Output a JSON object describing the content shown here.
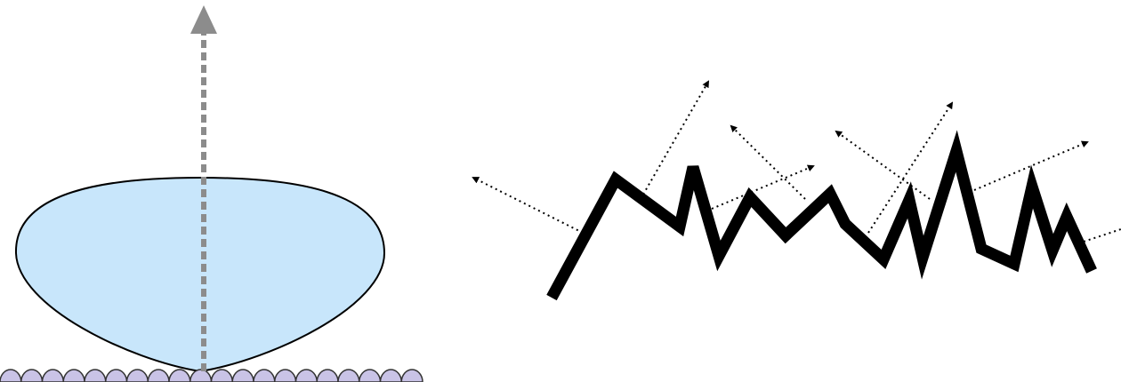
{
  "diagram": {
    "left_panel": {
      "subject": "lobe-over-bumpy-surface",
      "lobe_fill": "#c8e6fb",
      "lobe_stroke": "#000000",
      "surface_fill": "#c9c3e6",
      "surface_bump_count": 20,
      "vertical_arrow_color": "#8c8c8c",
      "vertical_arrow_style": "dashed"
    },
    "right_panel": {
      "subject": "rough-surface-scattering",
      "surface_stroke": "#000000",
      "scatter_arrow_color": "#000000",
      "scatter_arrow_style": "dotted",
      "scatter_arrow_count": 9
    }
  }
}
